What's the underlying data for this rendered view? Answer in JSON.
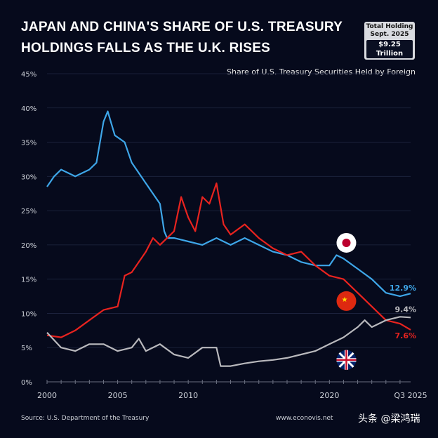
{
  "title_lines": [
    "JAPAN AND CHINA'S SHARE OF U.S. TREASURY",
    "HOLDINGS FALLS AS THE U.K. RISES"
  ],
  "badge": {
    "line1": "Total Holding",
    "line2": "Sept. 2025",
    "value": "$9.25 Trillion"
  },
  "chart_data": {
    "type": "line",
    "title": "JAPAN AND CHINA'S SHARE OF U.S. TREASURY HOLDINGS FALLS AS THE U.K. RISES",
    "subtitle": "Share of U.S. Treasury Securities Held by Foreign",
    "ylim": [
      0,
      45
    ],
    "xlim": [
      2000,
      2025.75
    ],
    "yticks": [
      "0%",
      "5%",
      "10%",
      "15%",
      "20%",
      "25%",
      "30%",
      "35%",
      "40%",
      "45%"
    ],
    "xticks": [
      {
        "v": 2000,
        "label": "2000"
      },
      {
        "v": 2005,
        "label": "2005"
      },
      {
        "v": 2010,
        "label": "2010"
      },
      {
        "v": 2020,
        "label": "2020"
      },
      {
        "v": 2025.75,
        "label": "Q3 2025"
      }
    ],
    "grid": true,
    "series": [
      {
        "key": "japan",
        "color": "#3ea6e8",
        "end_label": "12.9%",
        "flag": "japan-flag",
        "x": [
          2000,
          2000.5,
          2001,
          2002,
          2003,
          2003.5,
          2004,
          2004.3,
          2004.8,
          2005.5,
          2006,
          2007,
          2008,
          2008.3,
          2008.5,
          2009,
          2010,
          2011,
          2012,
          2013,
          2014,
          2015,
          2016,
          2017,
          2018,
          2019,
          2020,
          2020.5,
          2021,
          2022,
          2023,
          2024,
          2025,
          2025.75
        ],
        "y": [
          28.5,
          30,
          31,
          30,
          31,
          32,
          38,
          39.5,
          36,
          35,
          32,
          29,
          26,
          22,
          21,
          21,
          20.5,
          20,
          21,
          20,
          21,
          20,
          19,
          18.5,
          17.5,
          17,
          17,
          18.5,
          18,
          16.5,
          15,
          13,
          12.5,
          12.9
        ]
      },
      {
        "key": "china",
        "color": "#e8231f",
        "end_label": "7.6%",
        "flag": "china-flag",
        "x": [
          2000,
          2001,
          2002,
          2003,
          2004,
          2005,
          2005.5,
          2006,
          2007,
          2007.5,
          2008,
          2009,
          2009.5,
          2010,
          2010.5,
          2011,
          2011.5,
          2012,
          2012.5,
          2013,
          2014,
          2015,
          2016,
          2017,
          2018,
          2019,
          2020,
          2021,
          2022,
          2023,
          2024,
          2025,
          2025.75
        ],
        "y": [
          6.8,
          6.5,
          7.5,
          9,
          10.5,
          11,
          15.5,
          16,
          19,
          21,
          20,
          22,
          27,
          24,
          22,
          27,
          26,
          29,
          23,
          21.5,
          23,
          21,
          19.5,
          18.5,
          19,
          17,
          15.5,
          15,
          13,
          11,
          9,
          8.5,
          7.6
        ]
      },
      {
        "key": "uk",
        "color": "#b9b9bd",
        "end_label": "9.4%",
        "flag": "uk-flag",
        "x": [
          2000,
          2001,
          2002,
          2003,
          2004,
          2005,
          2006,
          2006.5,
          2007,
          2008,
          2009,
          2010,
          2011,
          2012,
          2012.3,
          2013,
          2014,
          2015,
          2016,
          2017,
          2018,
          2019,
          2020,
          2021,
          2022,
          2022.5,
          2023,
          2024,
          2025,
          2025.75
        ],
        "y": [
          7.2,
          5,
          4.5,
          5.5,
          5.5,
          4.5,
          5,
          6.3,
          4.5,
          5.5,
          4,
          3.5,
          5,
          5,
          2.3,
          2.3,
          2.7,
          3,
          3.2,
          3.5,
          4,
          4.5,
          5.5,
          6.5,
          8,
          9,
          8,
          9,
          9.5,
          9.4
        ]
      }
    ]
  },
  "footer": {
    "source": "Source: U.S. Department of the Treasury",
    "site": "www.econovis.net",
    "watermark": "头条 @梁鸿瑞"
  }
}
